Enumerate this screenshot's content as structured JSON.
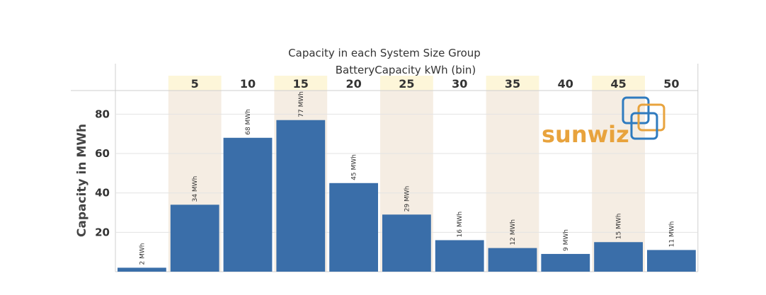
{
  "chart_data": {
    "type": "bar",
    "title": "Capacity in each System Size Group",
    "column_header": "BatteryCapacity kWh (bin)",
    "categories": [
      "",
      "5",
      "10",
      "15",
      "20",
      "25",
      "30",
      "35",
      "40",
      "45",
      "50"
    ],
    "values": [
      2,
      34,
      68,
      77,
      45,
      29,
      16,
      12,
      9,
      15,
      11
    ],
    "data_labels": [
      "2 MWh",
      "34 MWh",
      "68 MWh",
      "77 MWh",
      "45 MWh",
      "29 MWh",
      "16 MWh",
      "12 MWh",
      "9 MWh",
      "15 MWh",
      "11 MWh"
    ],
    "ylabel": "Capacity in MWh",
    "yticks": [
      "20",
      "40",
      "60",
      "80"
    ],
    "ylim": [
      0,
      92
    ],
    "shaded_columns": [
      1,
      3,
      5,
      7,
      9
    ],
    "colors": {
      "bar": "#3a6ea9",
      "band": "#f5ede3",
      "header_band": "#fdf6d9",
      "grid": "#e3e3e3",
      "axis": "#cfcfcf"
    }
  },
  "logo": {
    "text": "sunwiz",
    "text_color": "#e8a33d",
    "square_colors": [
      "#2f7bbf",
      "#e8a33d"
    ]
  }
}
